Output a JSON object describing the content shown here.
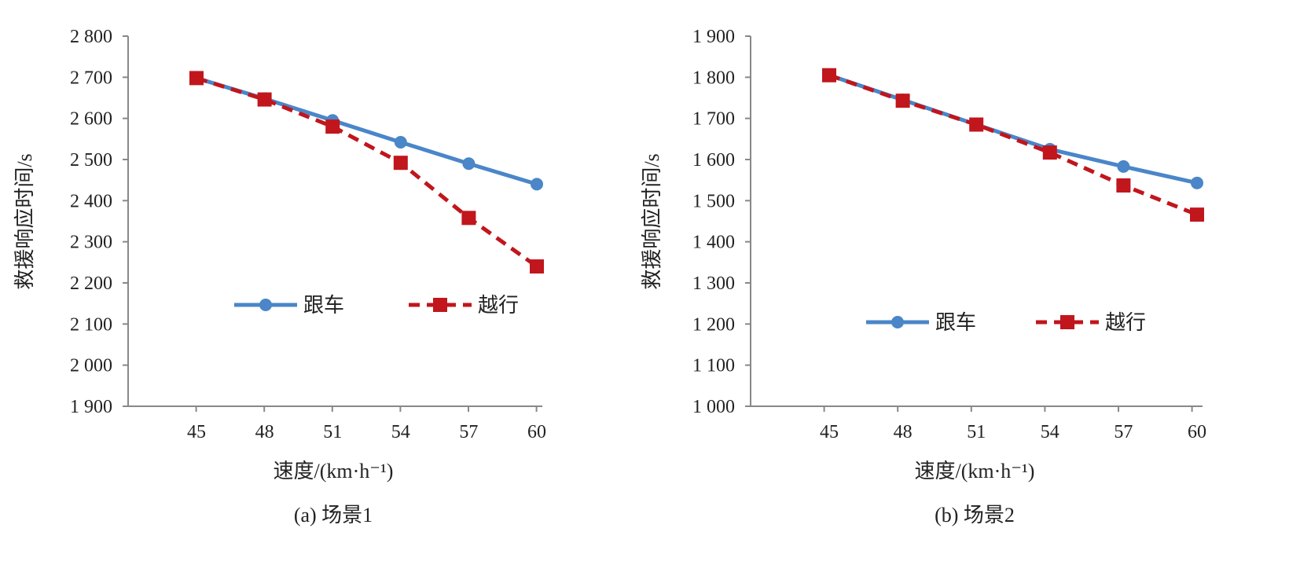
{
  "chart_data": [
    {
      "type": "line",
      "title": "(a) 场景1",
      "xlabel": "速度/(km·h⁻¹)",
      "ylabel": "救援响应时间/s",
      "categories": [
        "45",
        "48",
        "51",
        "54",
        "57",
        "60"
      ],
      "ylim": [
        1900,
        2800
      ],
      "yticks": [
        1900,
        2000,
        2100,
        2200,
        2300,
        2400,
        2500,
        2600,
        2700,
        2800
      ],
      "ytick_labels": [
        "1 900",
        "2 000",
        "2 100",
        "2 200",
        "2 300",
        "2 400",
        "2 500",
        "2 600",
        "2 700",
        "2 800"
      ],
      "grid": false,
      "legend_position": "center",
      "series": [
        {
          "name": "跟车",
          "color": "#4a86c8",
          "style": "solid",
          "marker": "circle",
          "values": [
            2698,
            2648,
            2595,
            2542,
            2490,
            2440
          ]
        },
        {
          "name": "越行",
          "color": "#c0161c",
          "style": "dashed",
          "marker": "square",
          "values": [
            2698,
            2646,
            2580,
            2492,
            2358,
            2240
          ]
        }
      ]
    },
    {
      "type": "line",
      "title": "(b) 场景2",
      "xlabel": "速度/(km·h⁻¹)",
      "ylabel": "救援响应时间/s",
      "categories": [
        "45",
        "48",
        "51",
        "54",
        "57",
        "60"
      ],
      "ylim": [
        1000,
        1900
      ],
      "yticks": [
        1000,
        1100,
        1200,
        1300,
        1400,
        1500,
        1600,
        1700,
        1800,
        1900
      ],
      "ytick_labels": [
        "1 000",
        "1 100",
        "1 200",
        "1 300",
        "1 400",
        "1 500",
        "1 600",
        "1 700",
        "1 800",
        "1 900"
      ],
      "grid": false,
      "legend_position": "center-bottom",
      "series": [
        {
          "name": "跟车",
          "color": "#4a86c8",
          "style": "solid",
          "marker": "circle",
          "values": [
            1805,
            1745,
            1685,
            1625,
            1583,
            1543
          ]
        },
        {
          "name": "越行",
          "color": "#c0161c",
          "style": "dashed",
          "marker": "square",
          "values": [
            1805,
            1743,
            1685,
            1617,
            1537,
            1466
          ]
        }
      ]
    }
  ]
}
